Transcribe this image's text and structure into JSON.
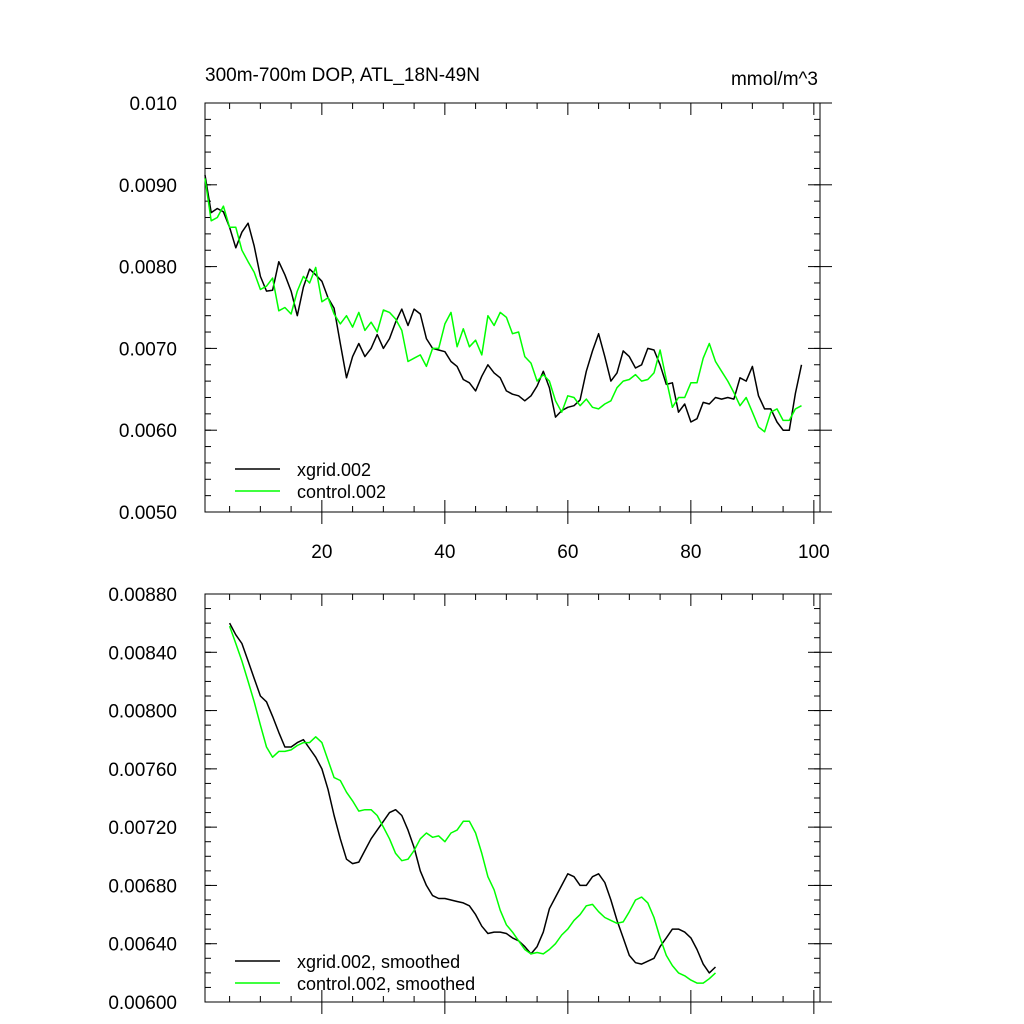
{
  "chart_data": [
    {
      "type": "line",
      "title": "300m-700m DOP, ATL_18N-49N",
      "units": "mmol/m^3",
      "xlim": [
        1,
        101
      ],
      "ylim": [
        0.005,
        0.01
      ],
      "x_ticks": [
        20,
        40,
        60,
        80,
        100
      ],
      "x_tick_labels": [
        "20",
        "40",
        "60",
        "80",
        "100"
      ],
      "y_ticks": [
        0.005,
        0.006,
        0.007,
        0.008,
        0.009,
        0.01
      ],
      "y_tick_labels": [
        "0.0050",
        "0.0060",
        "0.0070",
        "0.0080",
        "0.0090",
        "0.010"
      ],
      "legend_position": "bottom-left",
      "series": [
        {
          "name": "xgrid.002",
          "color": "#000000",
          "x_start": 1,
          "values": [
            0.00912,
            0.00866,
            0.00871,
            0.00867,
            0.00848,
            0.00823,
            0.00842,
            0.00853,
            0.00825,
            0.00788,
            0.0077,
            0.00771,
            0.00806,
            0.0079,
            0.0077,
            0.0074,
            0.00775,
            0.00797,
            0.0079,
            0.00782,
            0.00762,
            0.00749,
            0.00706,
            0.00664,
            0.0069,
            0.00706,
            0.0069,
            0.007,
            0.00717,
            0.007,
            0.00712,
            0.00732,
            0.00748,
            0.00728,
            0.00748,
            0.00742,
            0.00712,
            0.007,
            0.00698,
            0.00696,
            0.00684,
            0.00678,
            0.00662,
            0.00658,
            0.00648,
            0.00666,
            0.0068,
            0.0067,
            0.00664,
            0.00648,
            0.00644,
            0.00642,
            0.00636,
            0.00642,
            0.00654,
            0.00672,
            0.00652,
            0.00616,
            0.00624,
            0.00628,
            0.0063,
            0.00637,
            0.00672,
            0.00697,
            0.00718,
            0.0069,
            0.0066,
            0.0067,
            0.00697,
            0.0069,
            0.00676,
            0.0068,
            0.007,
            0.00698,
            0.0068,
            0.00656,
            0.00658,
            0.00622,
            0.00632,
            0.0061,
            0.00614,
            0.00634,
            0.00632,
            0.0064,
            0.00638,
            0.0064,
            0.00638,
            0.00664,
            0.0066,
            0.00678,
            0.00642,
            0.00626,
            0.00626,
            0.0061,
            0.006,
            0.006,
            0.00645,
            0.0068
          ]
        },
        {
          "name": "control.002",
          "color": "#00ff00",
          "x_start": 1,
          "values": [
            0.00908,
            0.00856,
            0.0086,
            0.00874,
            0.00848,
            0.00848,
            0.0082,
            0.00806,
            0.00793,
            0.00772,
            0.00776,
            0.00786,
            0.00746,
            0.0075,
            0.00742,
            0.0077,
            0.00788,
            0.0078,
            0.00799,
            0.00757,
            0.00762,
            0.00742,
            0.0073,
            0.0074,
            0.00726,
            0.00744,
            0.00722,
            0.00732,
            0.0072,
            0.00747,
            0.00744,
            0.00736,
            0.00722,
            0.00684,
            0.00688,
            0.00692,
            0.00678,
            0.007,
            0.007,
            0.0073,
            0.00744,
            0.00702,
            0.00724,
            0.00702,
            0.0071,
            0.00692,
            0.0074,
            0.00728,
            0.00744,
            0.00738,
            0.00718,
            0.0072,
            0.0069,
            0.00682,
            0.0066,
            0.00668,
            0.0066,
            0.00636,
            0.00622,
            0.00642,
            0.0064,
            0.0063,
            0.00638,
            0.00628,
            0.00626,
            0.00632,
            0.00636,
            0.00652,
            0.0066,
            0.00662,
            0.00668,
            0.0066,
            0.00662,
            0.0067,
            0.00698,
            0.00662,
            0.00628,
            0.0064,
            0.0064,
            0.00658,
            0.00658,
            0.00688,
            0.00706,
            0.00684,
            0.00672,
            0.0066,
            0.00646,
            0.0063,
            0.0064,
            0.00622,
            0.00604,
            0.00598,
            0.00622,
            0.00626,
            0.00612,
            0.00612,
            0.00626,
            0.0063
          ]
        }
      ]
    },
    {
      "type": "line",
      "title": "",
      "xlim": [
        1,
        101
      ],
      "ylim": [
        0.006,
        0.0088
      ],
      "x_ticks": [
        20,
        40,
        60,
        80,
        100
      ],
      "y_ticks": [
        0.006,
        0.0064,
        0.0068,
        0.0072,
        0.0076,
        0.008,
        0.0084,
        0.0088
      ],
      "y_tick_labels": [
        "0.00600",
        "0.00640",
        "0.00680",
        "0.00720",
        "0.00760",
        "0.00800",
        "0.00840",
        "0.00880"
      ],
      "legend_position": "bottom-left",
      "series": [
        {
          "name": "xgrid.002, smoothed",
          "color": "#000000",
          "x_start": 5,
          "values": [
            0.0086,
            0.00852,
            0.00846,
            0.00834,
            0.00822,
            0.0081,
            0.00806,
            0.00796,
            0.00785,
            0.00775,
            0.00775,
            0.00778,
            0.0078,
            0.00774,
            0.00768,
            0.0076,
            0.00746,
            0.00728,
            0.00712,
            0.00698,
            0.00695,
            0.00696,
            0.00704,
            0.00712,
            0.00718,
            0.00724,
            0.0073,
            0.00732,
            0.00728,
            0.00718,
            0.00706,
            0.0069,
            0.0068,
            0.00673,
            0.00671,
            0.00671,
            0.0067,
            0.00669,
            0.00668,
            0.00666,
            0.0066,
            0.00652,
            0.00647,
            0.00648,
            0.00648,
            0.00647,
            0.00644,
            0.00642,
            0.00638,
            0.00633,
            0.00638,
            0.00648,
            0.00664,
            0.00672,
            0.0068,
            0.00688,
            0.00686,
            0.0068,
            0.0068,
            0.00686,
            0.00688,
            0.00682,
            0.0067,
            0.00656,
            0.00644,
            0.00632,
            0.00627,
            0.00626,
            0.00628,
            0.0063,
            0.00638,
            0.00644,
            0.0065,
            0.0065,
            0.00648,
            0.00644,
            0.00636,
            0.00626,
            0.0062,
            0.00624
          ]
        },
        {
          "name": "control.002, smoothed",
          "color": "#00ff00",
          "x_start": 5,
          "values": [
            0.00858,
            0.00846,
            0.00834,
            0.0082,
            0.00806,
            0.0079,
            0.00775,
            0.00768,
            0.00772,
            0.00772,
            0.00773,
            0.00776,
            0.00778,
            0.00778,
            0.00782,
            0.00778,
            0.00766,
            0.00754,
            0.00752,
            0.00744,
            0.00738,
            0.00731,
            0.00732,
            0.00732,
            0.00728,
            0.0072,
            0.00712,
            0.00702,
            0.00697,
            0.00698,
            0.00704,
            0.00712,
            0.00716,
            0.00713,
            0.00714,
            0.0071,
            0.00716,
            0.00718,
            0.00724,
            0.00724,
            0.00716,
            0.00702,
            0.00686,
            0.00677,
            0.00663,
            0.00653,
            0.00648,
            0.00642,
            0.00636,
            0.00633,
            0.00634,
            0.00633,
            0.00636,
            0.0064,
            0.00646,
            0.0065,
            0.00656,
            0.0066,
            0.00666,
            0.00667,
            0.00662,
            0.00658,
            0.00656,
            0.00654,
            0.00655,
            0.00662,
            0.0067,
            0.00672,
            0.00668,
            0.00658,
            0.00644,
            0.00632,
            0.00625,
            0.0062,
            0.00618,
            0.00615,
            0.00613,
            0.00613,
            0.00616,
            0.0062
          ]
        }
      ]
    }
  ]
}
